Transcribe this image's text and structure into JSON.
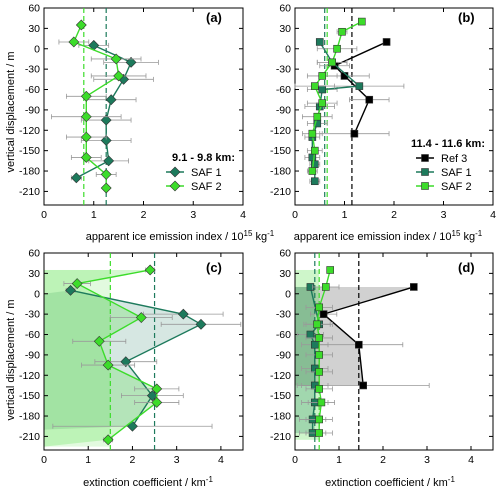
{
  "figure": {
    "ylabel": "vertical displacement / m",
    "xlabel_top": "apparent ice emission index / 10",
    "xlabel_top_sup": "15",
    "xlabel_top_unit": " kg",
    "xlabel_top_unit_sup": "-1",
    "xlabel_bottom": "extinction coefficient / km",
    "xlabel_bottom_sup": "-1"
  },
  "chart_data": [
    {
      "panel": "(a)",
      "type": "scatter",
      "xlim": [
        0,
        4
      ],
      "ylim": [
        -230,
        60
      ],
      "yticks": [
        60,
        30,
        0,
        -30,
        -60,
        -90,
        -120,
        -150,
        -180,
        -210
      ],
      "xticks": [
        0,
        1,
        2,
        3,
        4
      ],
      "legend_title": "9.1 - 9.8 km:",
      "legend_position": "bottom-right",
      "series": [
        {
          "name": "SAF 1",
          "color": "#1d7a5c",
          "marker": "diamond",
          "points": [
            [
              1.0,
              5
            ],
            [
              1.75,
              -20
            ],
            [
              1.6,
              -45
            ],
            [
              1.35,
              -75
            ],
            [
              1.25,
              -105
            ],
            [
              1.25,
              -135
            ],
            [
              1.3,
              -165
            ],
            [
              0.65,
              -190
            ]
          ],
          "xerr": [
            0.3,
            0.55,
            0.6,
            0.5,
            0.5,
            0.5,
            0.4,
            0.1
          ],
          "mean": 1.25
        },
        {
          "name": "SAF 2",
          "color": "#3cdc2a",
          "marker": "diamond",
          "points": [
            [
              0.75,
              35
            ],
            [
              0.6,
              10
            ],
            [
              1.45,
              -15
            ],
            [
              1.5,
              -40
            ],
            [
              0.85,
              -70
            ],
            [
              0.85,
              -100
            ],
            [
              0.85,
              -130
            ],
            [
              0.85,
              -160
            ],
            [
              1.25,
              -185
            ],
            [
              1.25,
              -205
            ]
          ],
          "xerr": [
            0.05,
            0.3,
            0.5,
            0.55,
            0.4,
            0.7,
            0.4,
            0.3,
            0.2,
            0.05
          ],
          "mean": 0.8
        }
      ]
    },
    {
      "panel": "(b)",
      "type": "scatter",
      "xlim": [
        0,
        4
      ],
      "ylim": [
        -230,
        60
      ],
      "yticks": [
        60,
        30,
        0,
        -30,
        -60,
        -90,
        -120,
        -150,
        -180,
        -210
      ],
      "xticks": [
        0,
        1,
        2,
        3,
        4
      ],
      "legend_title": "11.4 - 11.6 km:",
      "legend_position": "bottom-right",
      "series": [
        {
          "name": "Ref 3",
          "color": "#000000",
          "marker": "square",
          "points": [
            [
              1.85,
              10
            ],
            [
              0.8,
              -25
            ],
            [
              1.0,
              -40
            ],
            [
              1.5,
              -75
            ],
            [
              1.2,
              -125
            ]
          ],
          "xerr": [
            0.05,
            0.3,
            0.5,
            0.4,
            0.7
          ],
          "mean": 1.15
        },
        {
          "name": "SAF 1",
          "color": "#1d7a5c",
          "marker": "square",
          "points": [
            [
              0.5,
              10
            ],
            [
              0.75,
              -20
            ],
            [
              1.3,
              -55
            ],
            [
              0.55,
              -60
            ],
            [
              0.5,
              -85
            ],
            [
              0.45,
              -110
            ],
            [
              0.35,
              -130
            ],
            [
              0.35,
              -160
            ],
            [
              0.4,
              -170
            ],
            [
              0.4,
              -195
            ]
          ],
          "xerr": [
            0.05,
            0.3,
            0.9,
            0.3,
            0.3,
            0.2,
            0.15,
            0.15,
            0.1,
            0.1
          ],
          "mean": 0.6
        },
        {
          "name": "SAF 2",
          "color": "#3cdc2a",
          "marker": "square",
          "points": [
            [
              1.35,
              40
            ],
            [
              0.95,
              25
            ],
            [
              0.85,
              0
            ],
            [
              0.75,
              -20
            ],
            [
              0.55,
              -40
            ],
            [
              0.4,
              -55
            ],
            [
              0.55,
              -80
            ],
            [
              0.45,
              -100
            ],
            [
              0.35,
              -125
            ],
            [
              0.4,
              -150
            ],
            [
              0.35,
              -180
            ]
          ],
          "xerr": [
            0.05,
            0.1,
            0.4,
            0.3,
            0.3,
            0.4,
            0.3,
            0.3,
            0.2,
            0.15,
            0.1
          ],
          "mean": 0.65
        }
      ]
    },
    {
      "panel": "(c)",
      "type": "scatter",
      "xlim": [
        0,
        4.5
      ],
      "ylim": [
        -230,
        60
      ],
      "yticks": [
        60,
        30,
        0,
        -30,
        -60,
        -90,
        -120,
        -150,
        -180,
        -210
      ],
      "xticks": [
        0,
        1,
        2,
        3,
        4
      ],
      "series": [
        {
          "name": "SAF 1",
          "color": "#1d7a5c",
          "marker": "diamond",
          "points": [
            [
              0.6,
              5
            ],
            [
              3.15,
              -30
            ],
            [
              3.55,
              -45
            ],
            [
              1.85,
              -100
            ],
            [
              2.45,
              -150
            ],
            [
              2.0,
              -195
            ]
          ],
          "xerr": [
            0.1,
            0.9,
            0.9,
            0.7,
            0.7,
            1.8
          ],
          "mean": 2.5,
          "fill_bands": [
            [
              0,
              -200
            ]
          ]
        },
        {
          "name": "SAF 2",
          "color": "#3cdc2a",
          "marker": "diamond",
          "points": [
            [
              2.4,
              35
            ],
            [
              0.75,
              15
            ],
            [
              2.2,
              -35
            ],
            [
              1.25,
              -70
            ],
            [
              1.45,
              -105
            ],
            [
              2.55,
              -140
            ],
            [
              2.55,
              -160
            ],
            [
              1.45,
              -215
            ]
          ],
          "xerr": [
            0.1,
            0.3,
            0.7,
            0.6,
            0.6,
            0.5,
            0.5,
            0.1
          ],
          "mean": 1.5,
          "fill_bands": [
            [
              35,
              -225
            ]
          ]
        }
      ]
    },
    {
      "panel": "(d)",
      "type": "scatter",
      "xlim": [
        0,
        4.5
      ],
      "ylim": [
        -230,
        60
      ],
      "yticks": [
        60,
        30,
        0,
        -30,
        -60,
        -90,
        -120,
        -150,
        -180,
        -210
      ],
      "xticks": [
        0,
        1,
        2,
        3,
        4
      ],
      "series": [
        {
          "name": "Ref 3",
          "color": "#000000",
          "marker": "square",
          "points": [
            [
              2.7,
              10
            ],
            [
              0.65,
              -30
            ],
            [
              1.45,
              -75
            ],
            [
              1.55,
              -135
            ]
          ],
          "xerr": [
            0.05,
            0.3,
            1.0,
            1.5
          ],
          "mean": 1.45
        },
        {
          "name": "SAF 1",
          "color": "#1d7a5c",
          "marker": "square",
          "points": [
            [
              0.35,
              10
            ],
            [
              0.55,
              -45
            ],
            [
              0.35,
              -60
            ],
            [
              0.45,
              -75
            ],
            [
              0.45,
              -110
            ],
            [
              0.45,
              -135
            ],
            [
              0.45,
              -160
            ],
            [
              0.4,
              -185
            ],
            [
              0.4,
              -205
            ]
          ],
          "xerr": [
            0.05,
            0.3,
            0.3,
            0.3,
            0.3,
            0.3,
            0.3,
            0.3,
            0.3
          ],
          "mean": 0.45
        },
        {
          "name": "SAF 2",
          "color": "#3cdc2a",
          "marker": "square",
          "points": [
            [
              0.8,
              35
            ],
            [
              0.7,
              10
            ],
            [
              0.55,
              -20
            ],
            [
              0.5,
              -45
            ],
            [
              0.55,
              -65
            ],
            [
              0.55,
              -90
            ],
            [
              0.55,
              -115
            ],
            [
              0.55,
              -140
            ],
            [
              0.6,
              -160
            ],
            [
              0.55,
              -185
            ],
            [
              0.55,
              -205
            ]
          ],
          "xerr": [
            0.05,
            0.3,
            0.3,
            0.3,
            0.3,
            0.3,
            0.3,
            0.3,
            0.3,
            0.3,
            0.3
          ],
          "mean": 0.55
        }
      ]
    }
  ]
}
